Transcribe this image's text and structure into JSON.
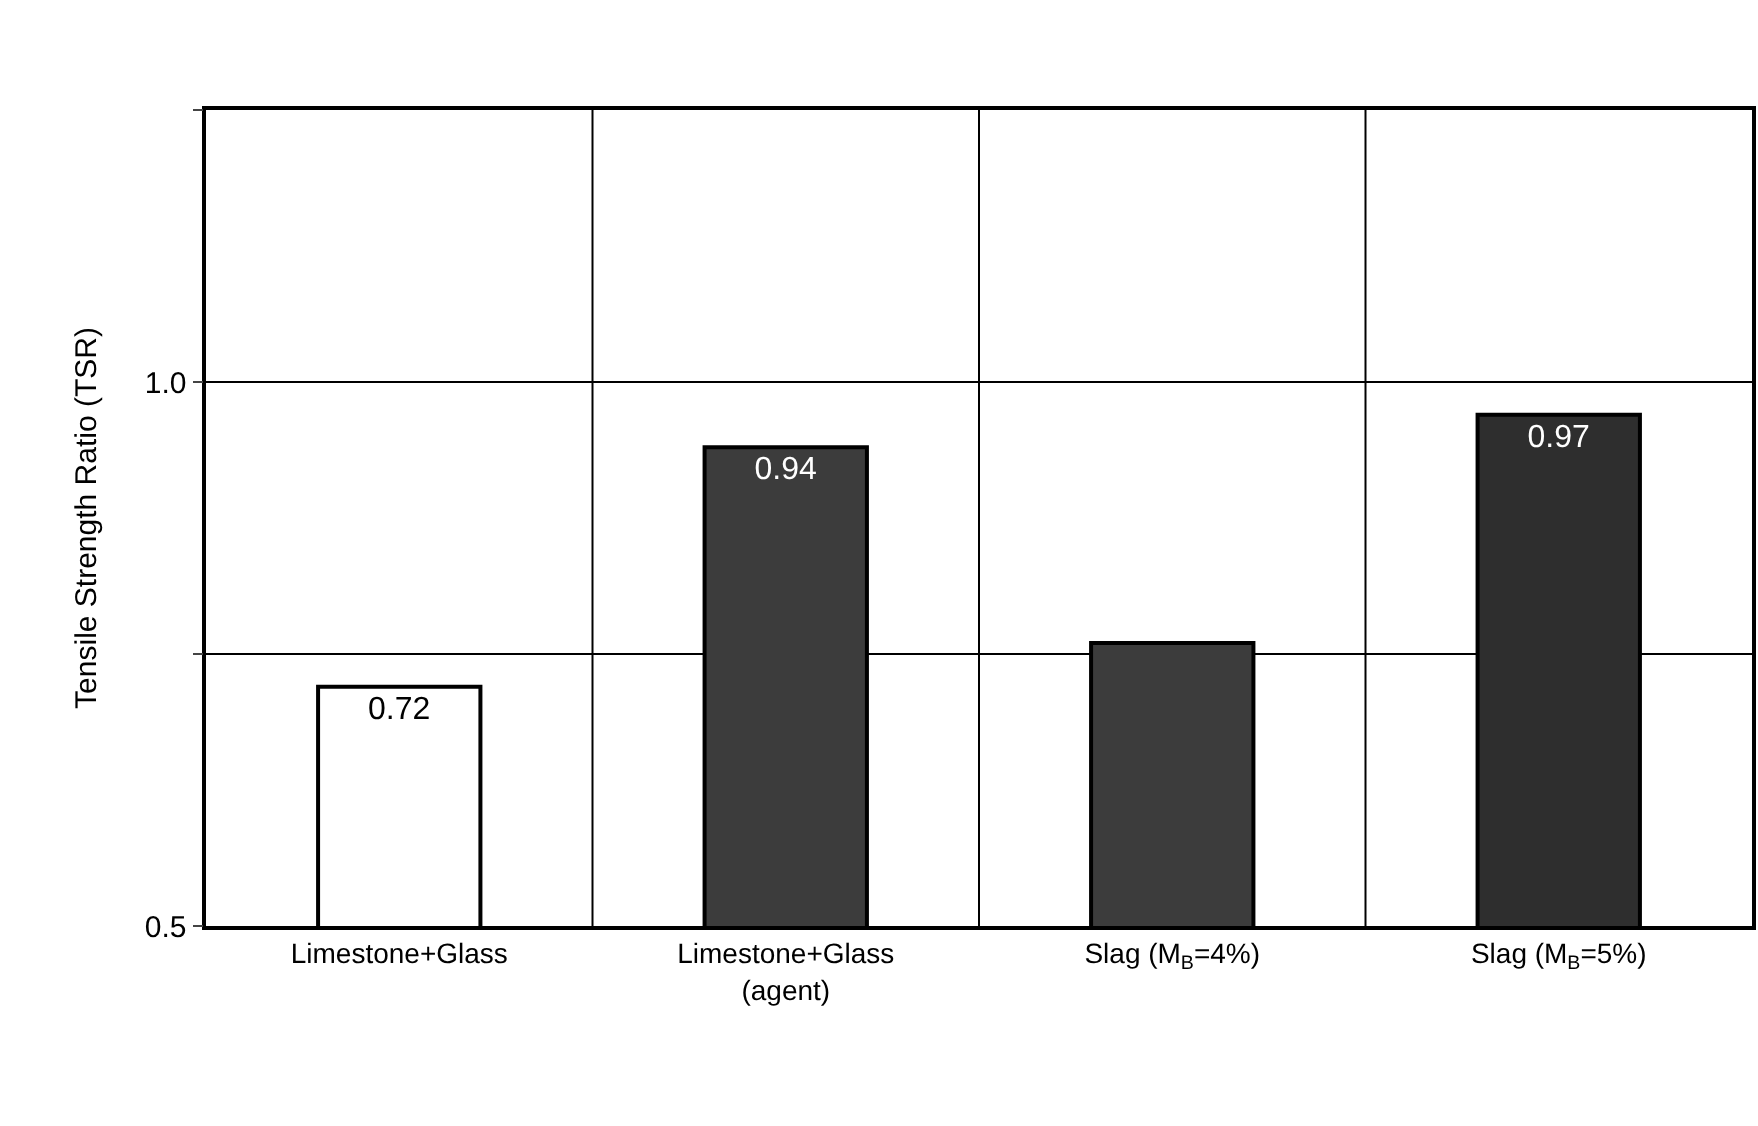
{
  "chart_data": {
    "type": "bar",
    "ylabel": "Tensile Strength Ratio (TSR)",
    "categories": [
      "Limestone+Glass",
      "Limestone+Glass\n(agent)",
      "Slag (M$_{B}$=4%)",
      "Slag (M$_{B}$=5%)"
    ],
    "values": [
      0.72,
      0.94,
      0.76,
      0.97
    ],
    "colors": [
      "#ffffff",
      "#3c3c3c",
      "#3c3c3c",
      "#2e2e2e"
    ],
    "value_labels": [
      "0.72",
      "0.94",
      null,
      "0.97"
    ],
    "ylim": [
      0.5,
      1.25
    ],
    "yticks": [
      0.5,
      {
        "value": 0.75,
        "label": null
      },
      {
        "value": 1,
        "label": "1.0"
      },
      {
        "value": 1.25,
        "label": null
      }
    ],
    "grid": true
  }
}
